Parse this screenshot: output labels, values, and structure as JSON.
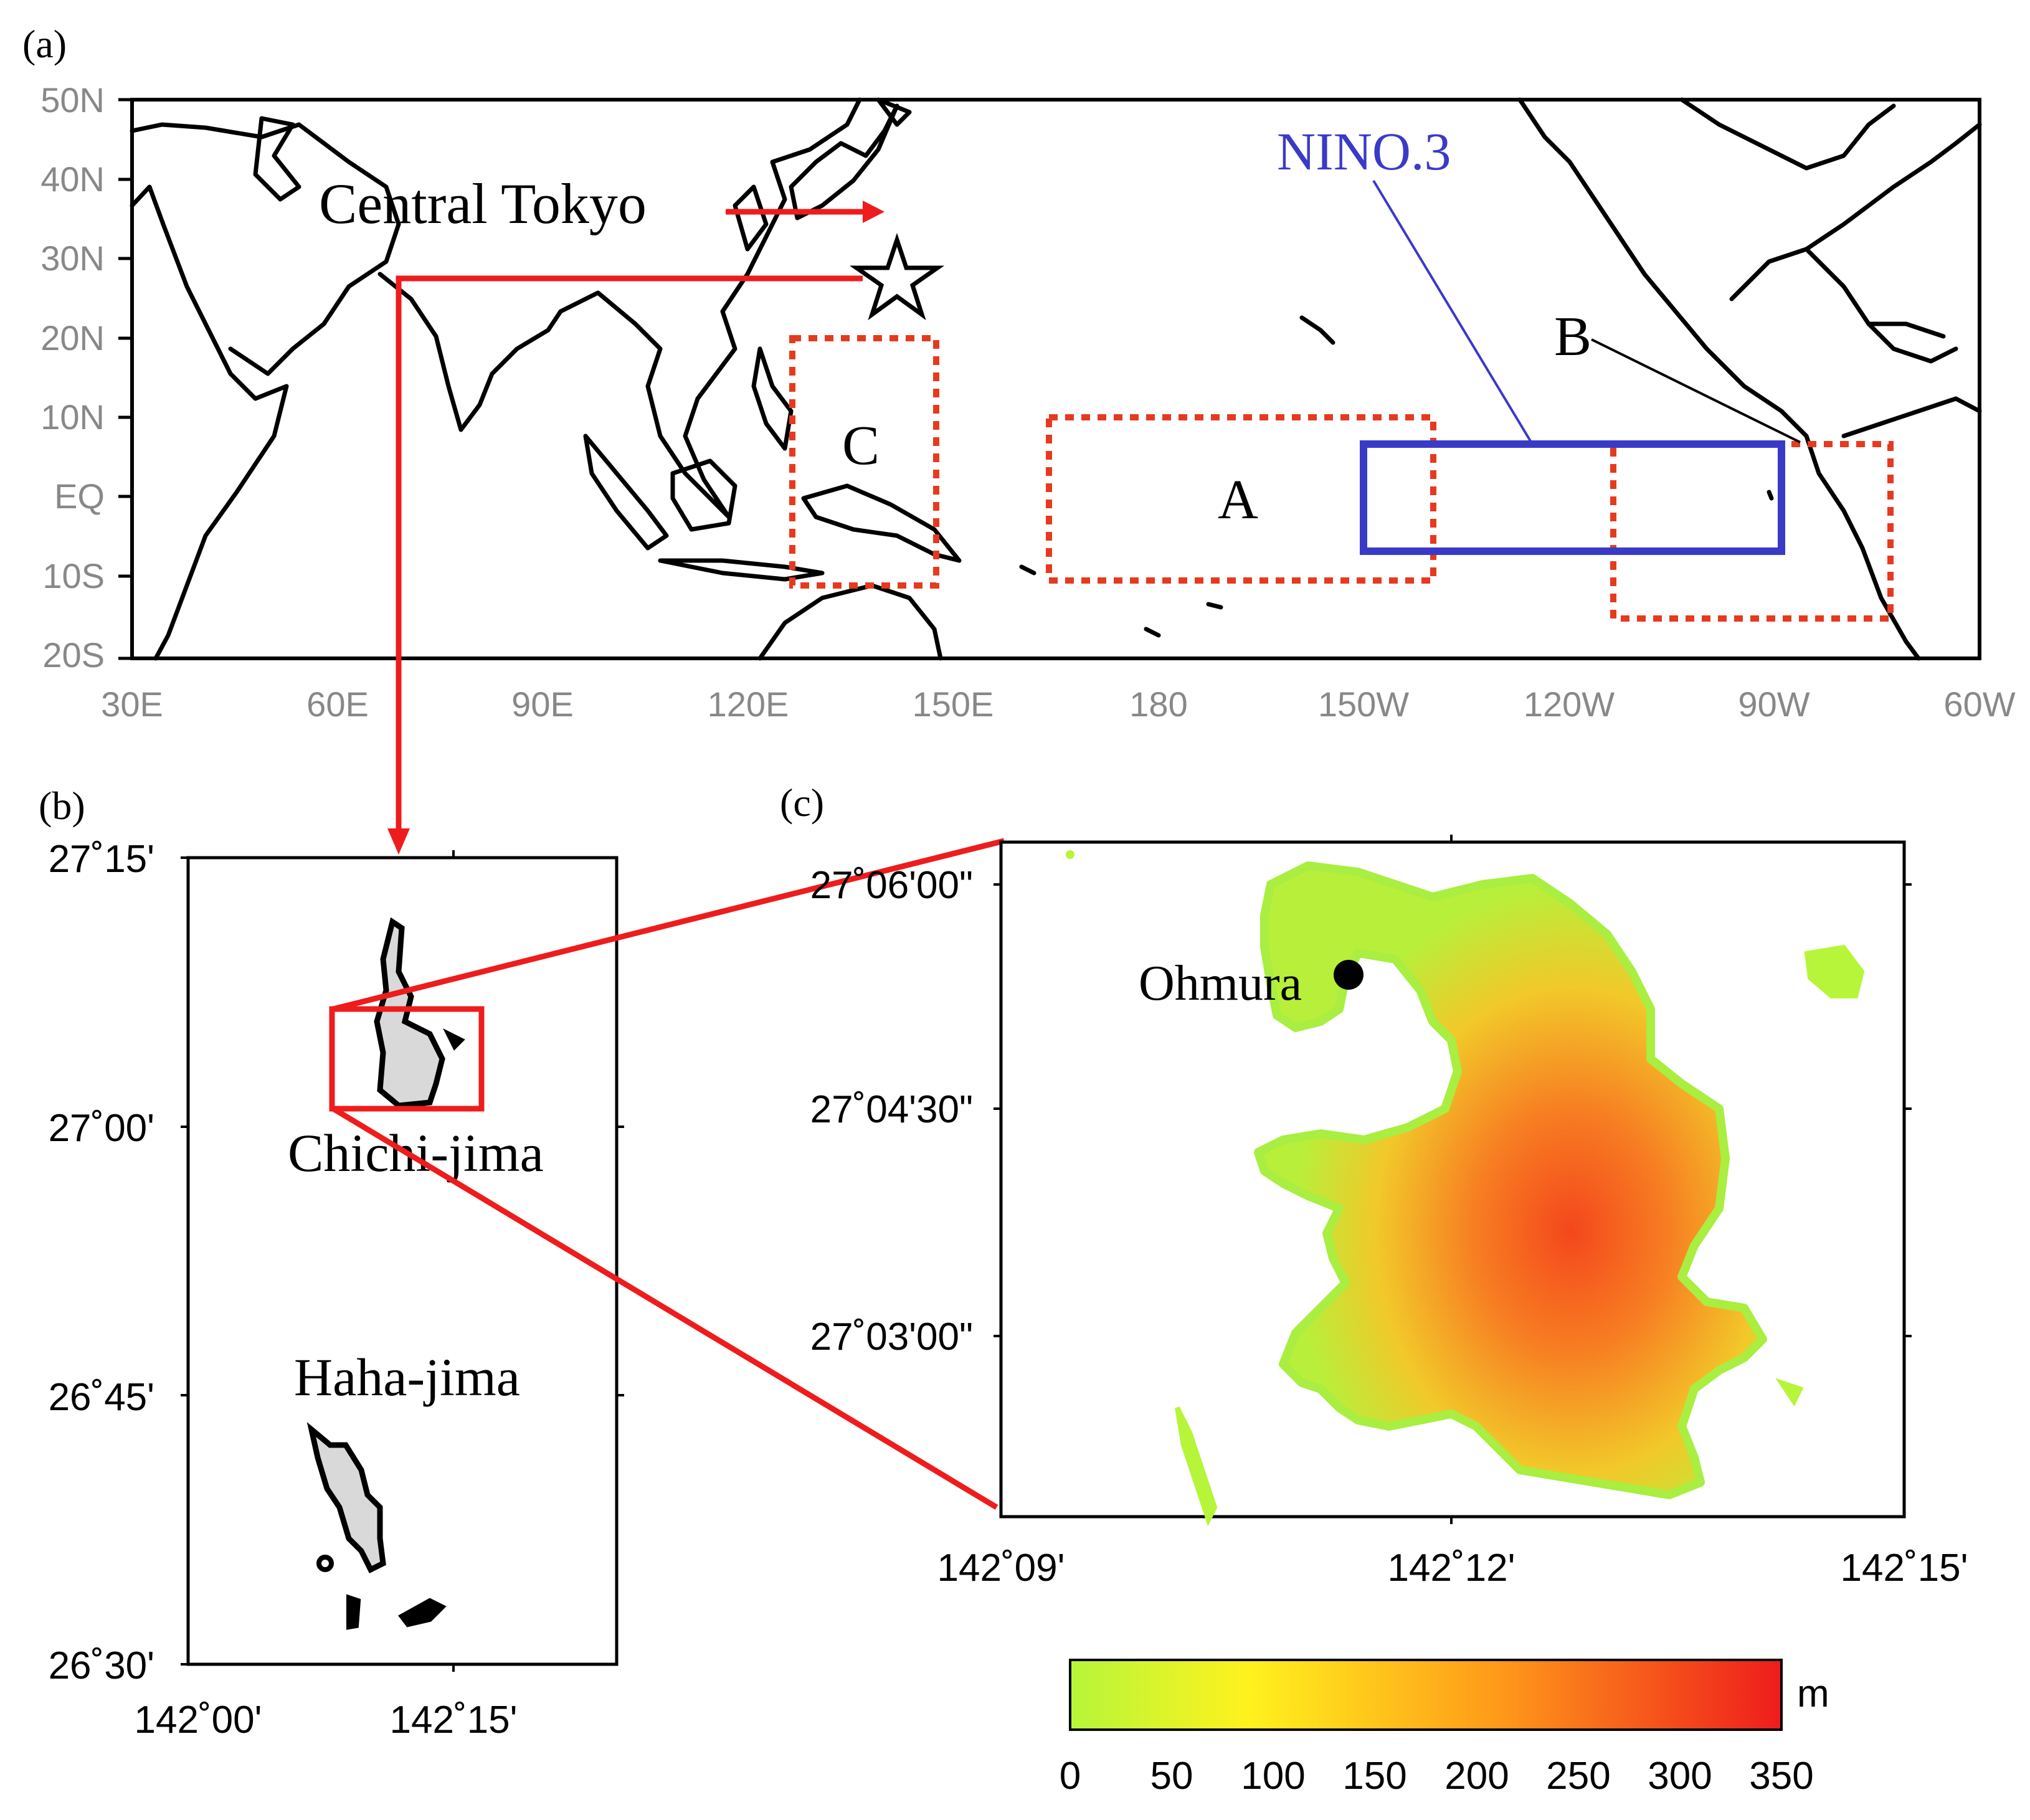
{
  "panel_a": {
    "label": "(a)",
    "lat_ticks": [
      "50N",
      "40N",
      "30N",
      "20N",
      "10N",
      "EQ",
      "10S",
      "20S"
    ],
    "lon_ticks": [
      "30E",
      "60E",
      "90E",
      "120E",
      "150E",
      "180",
      "150W",
      "120W",
      "90W",
      "60W"
    ],
    "central_tokyo": "Central Tokyo",
    "nino3": "NINO.3",
    "region_a": "A",
    "region_b": "B",
    "region_c": "C",
    "colors": {
      "regions": "#e63a1e",
      "nino3": "#3a3ac8",
      "arrows": "#ee1c1c"
    }
  },
  "panel_b": {
    "label": "(b)",
    "lat_ticks": [
      "27˚15'",
      "27˚00'",
      "26˚45'",
      "26˚30'"
    ],
    "lon_ticks": [
      "142˚00'",
      "142˚15'"
    ],
    "chichi": "Chichi-jima",
    "haha": "Haha-jima"
  },
  "panel_c": {
    "label": "(c)",
    "lat_ticks": [
      "27˚06'00\"",
      "27˚04'30\"",
      "27˚03'00\""
    ],
    "lon_ticks": [
      "142˚09'",
      "142˚12'",
      "142˚15'"
    ],
    "station": "Ohmura",
    "colorbar_unit": "m",
    "colorbar_ticks": [
      "0",
      "50",
      "100",
      "150",
      "200",
      "250",
      "300",
      "350"
    ],
    "colorbar_range": [
      0,
      350
    ],
    "colorbar_colors": [
      "#b6f53a",
      "#fff21e",
      "#ff9a1a",
      "#ee1c1c"
    ]
  }
}
